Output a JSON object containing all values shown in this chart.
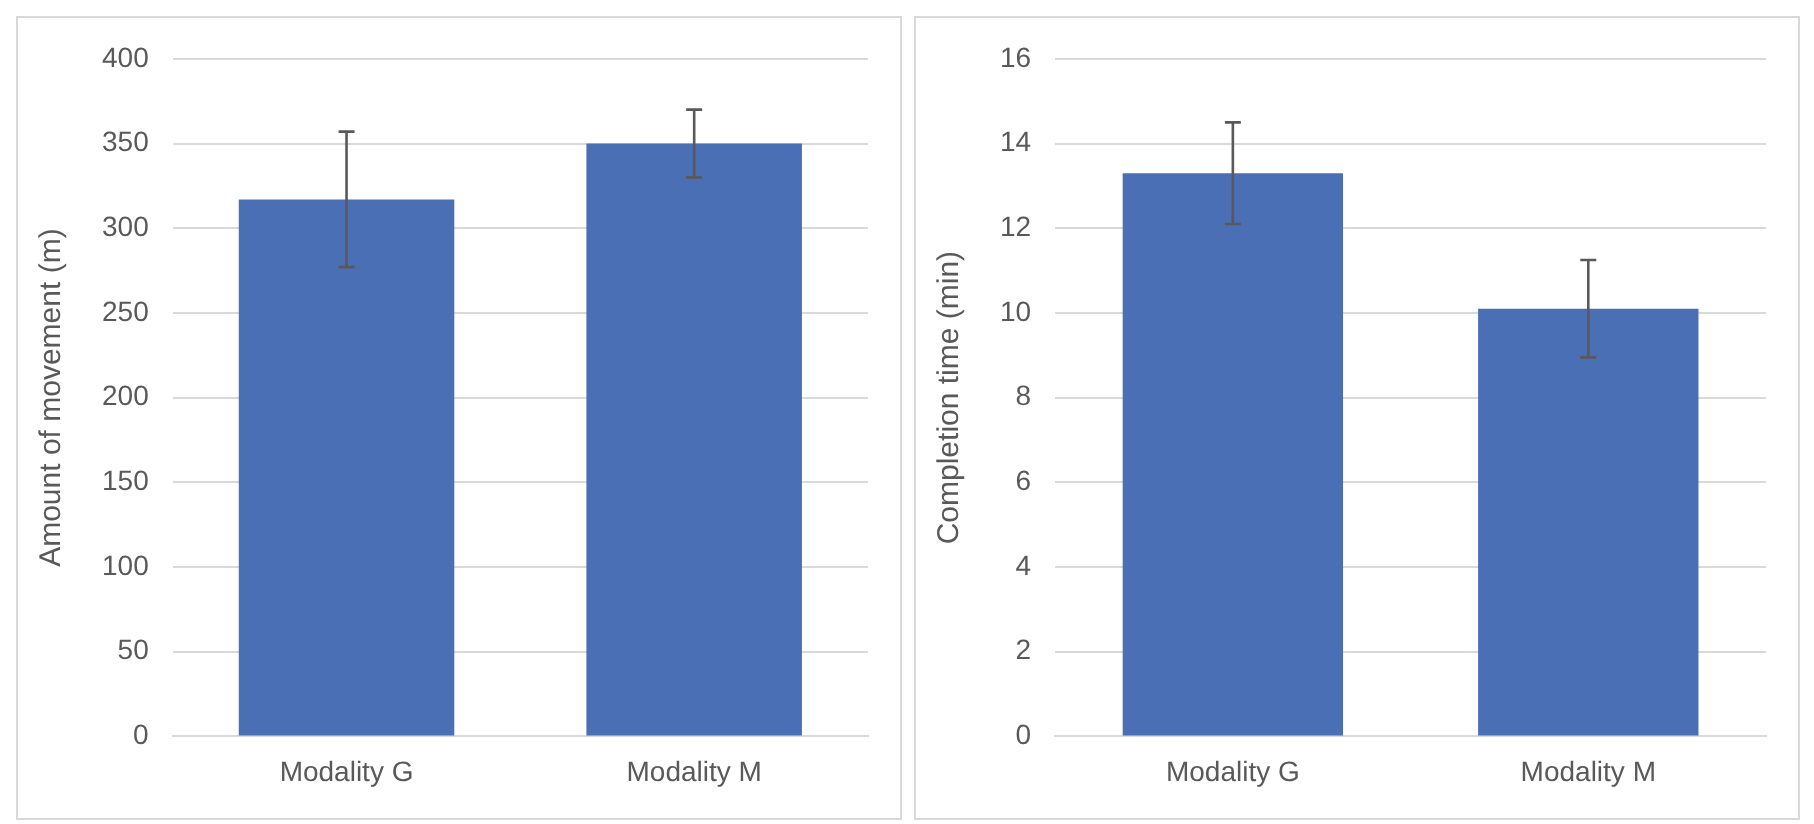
{
  "chart_data": [
    {
      "type": "bar",
      "categories": [
        "Modality G",
        "Modality M"
      ],
      "ylabel": "Amount of movement (m)",
      "series": [
        {
          "color": "#4a6fb5",
          "values": [
            317,
            350
          ],
          "errors": [
            40,
            20
          ]
        }
      ],
      "ylim": [
        0,
        400
      ],
      "yticks": [
        0,
        50,
        100,
        150,
        200,
        250,
        300,
        350,
        400
      ],
      "grid": "y",
      "legend": false
    },
    {
      "type": "bar",
      "categories": [
        "Modality G",
        "Modality M"
      ],
      "ylabel": "Completion time (min)",
      "series": [
        {
          "color": "#4a6fb5",
          "values": [
            13.3,
            10.1
          ],
          "errors": [
            1.2,
            1.15
          ]
        }
      ],
      "ylim": [
        0,
        16
      ],
      "yticks": [
        0,
        2,
        4,
        6,
        8,
        10,
        12,
        14,
        16
      ],
      "grid": "y",
      "legend": false
    }
  ]
}
